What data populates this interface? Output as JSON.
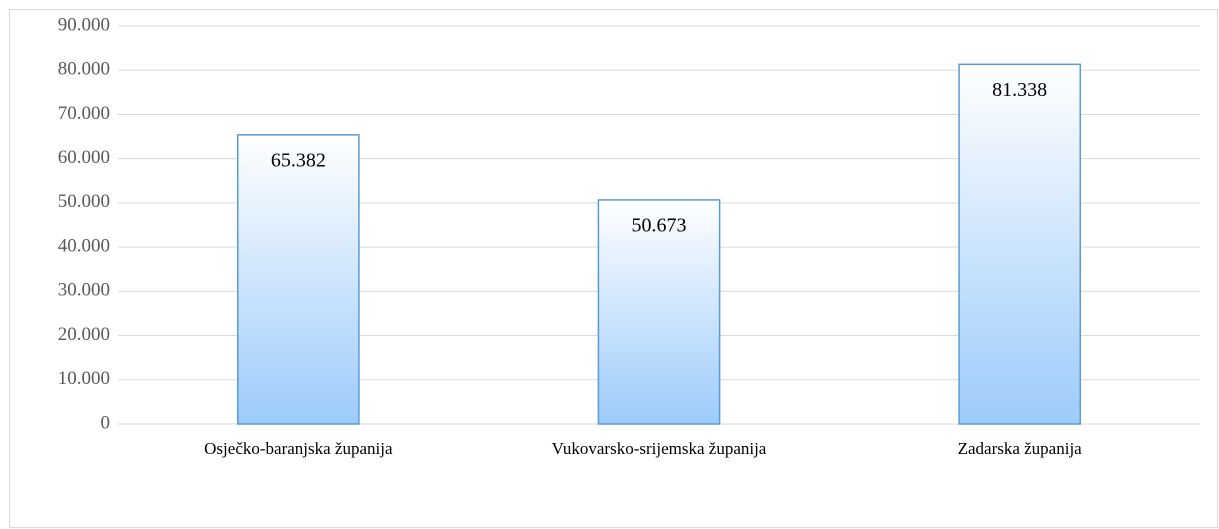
{
  "chart_data": {
    "type": "bar",
    "categories": [
      "Osječko-baranjska županija",
      "Vukovarsko-srijemska županija",
      "Zadarska županija"
    ],
    "values": [
      65382,
      50673,
      81338
    ],
    "value_labels": [
      "65.382",
      "50.673",
      "81.338"
    ],
    "color": "#9ccbfa",
    "edge_color": "#5b9bd5",
    "ylim": [
      0,
      90000
    ],
    "yticks": [
      0,
      {
        "value": 10000,
        "label": "10.000"
      },
      {
        "value": 20000,
        "label": "20.000"
      },
      {
        "value": 30000,
        "label": "30.000"
      },
      {
        "value": 40000,
        "label": "40.000"
      },
      {
        "value": 50000,
        "label": "50.000"
      },
      {
        "value": 60000,
        "label": "60.000"
      },
      {
        "value": 70000,
        "label": "70.000"
      },
      {
        "value": 80000,
        "label": "80.000"
      },
      {
        "value": 90000,
        "label": "90.000"
      }
    ],
    "grid": true
  }
}
